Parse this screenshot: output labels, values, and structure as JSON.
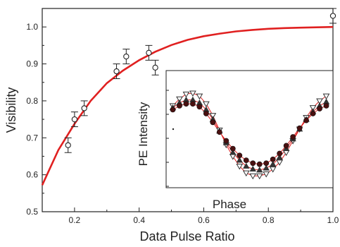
{
  "chart_data": [
    {
      "type": "scatter",
      "xlabel": "Data Pulse Ratio",
      "ylabel": "Visibility",
      "xlim": [
        0.1,
        1.0
      ],
      "ylim": [
        0.5,
        1.05
      ],
      "xticks": [
        0.2,
        0.4,
        0.6,
        0.8,
        1.0
      ],
      "yticks": [
        0.5,
        0.6,
        0.7,
        0.8,
        0.9,
        1.0
      ],
      "tick_labels_x": [
        "0.2",
        "0.4",
        "0.6",
        "0.8",
        "1.0"
      ],
      "tick_labels_y": [
        "0.5",
        "0.6",
        "0.7",
        "0.8",
        "0.9",
        "1.0"
      ],
      "grid": false,
      "points": [
        {
          "x": 0.18,
          "y": 0.68,
          "err": 0.02
        },
        {
          "x": 0.2,
          "y": 0.75,
          "err": 0.02
        },
        {
          "x": 0.23,
          "y": 0.78,
          "err": 0.02
        },
        {
          "x": 0.33,
          "y": 0.88,
          "err": 0.02
        },
        {
          "x": 0.36,
          "y": 0.92,
          "err": 0.02
        },
        {
          "x": 0.43,
          "y": 0.93,
          "err": 0.02
        },
        {
          "x": 0.45,
          "y": 0.89,
          "err": 0.02
        },
        {
          "x": 1.0,
          "y": 1.03,
          "err": 0.02
        }
      ],
      "fit_curve": {
        "color": "#e02020",
        "x": [
          0.1,
          0.15,
          0.2,
          0.25,
          0.3,
          0.35,
          0.4,
          0.45,
          0.5,
          0.55,
          0.6,
          0.65,
          0.7,
          0.75,
          0.8,
          0.85,
          0.9,
          0.95,
          1.0
        ],
        "y": [
          0.572,
          0.667,
          0.738,
          0.8,
          0.848,
          0.882,
          0.91,
          0.933,
          0.951,
          0.965,
          0.975,
          0.982,
          0.988,
          0.992,
          0.995,
          0.997,
          0.998,
          0.999,
          1.0
        ]
      }
    },
    {
      "type": "scatter",
      "xlabel": "Phase",
      "ylabel": "PE Intensity",
      "xlim": [
        0,
        1
      ],
      "ylim": [
        0,
        1
      ],
      "fit_color": "#e02020",
      "series": [
        {
          "marker": "open-triangle-down",
          "color": "#333333",
          "x": [
            0.04,
            0.08,
            0.12,
            0.16,
            0.2,
            0.24,
            0.28,
            0.32,
            0.36,
            0.4,
            0.44,
            0.48,
            0.52,
            0.56,
            0.6,
            0.64,
            0.68,
            0.72,
            0.76,
            0.8,
            0.84,
            0.88,
            0.92,
            0.96
          ],
          "y": [
            0.74,
            0.81,
            0.86,
            0.87,
            0.84,
            0.76,
            0.64,
            0.49,
            0.34,
            0.22,
            0.12,
            0.05,
            0.02,
            0.02,
            0.04,
            0.09,
            0.16,
            0.26,
            0.38,
            0.5,
            0.62,
            0.72,
            0.79,
            0.84
          ]
        },
        {
          "marker": "filled-triangle-up",
          "color": "#333333",
          "x": [
            0.04,
            0.08,
            0.12,
            0.16,
            0.2,
            0.24,
            0.28,
            0.32,
            0.36,
            0.4,
            0.44,
            0.48,
            0.52,
            0.56,
            0.6,
            0.64,
            0.68,
            0.72,
            0.76,
            0.8,
            0.84,
            0.88,
            0.92,
            0.96
          ],
          "y": [
            0.72,
            0.77,
            0.8,
            0.8,
            0.77,
            0.7,
            0.6,
            0.48,
            0.36,
            0.26,
            0.18,
            0.12,
            0.09,
            0.08,
            0.1,
            0.14,
            0.21,
            0.3,
            0.4,
            0.5,
            0.6,
            0.68,
            0.74,
            0.78
          ]
        },
        {
          "marker": "filled-circle",
          "color": "#4a1010",
          "x": [
            0.04,
            0.08,
            0.12,
            0.16,
            0.2,
            0.24,
            0.28,
            0.32,
            0.36,
            0.4,
            0.44,
            0.48,
            0.52,
            0.56,
            0.6,
            0.64,
            0.68,
            0.72,
            0.76,
            0.8,
            0.84,
            0.88,
            0.92,
            0.96
          ],
          "y": [
            0.7,
            0.74,
            0.76,
            0.76,
            0.73,
            0.66,
            0.57,
            0.47,
            0.38,
            0.3,
            0.23,
            0.18,
            0.15,
            0.14,
            0.15,
            0.19,
            0.25,
            0.33,
            0.42,
            0.51,
            0.59,
            0.66,
            0.71,
            0.74
          ]
        }
      ]
    }
  ]
}
